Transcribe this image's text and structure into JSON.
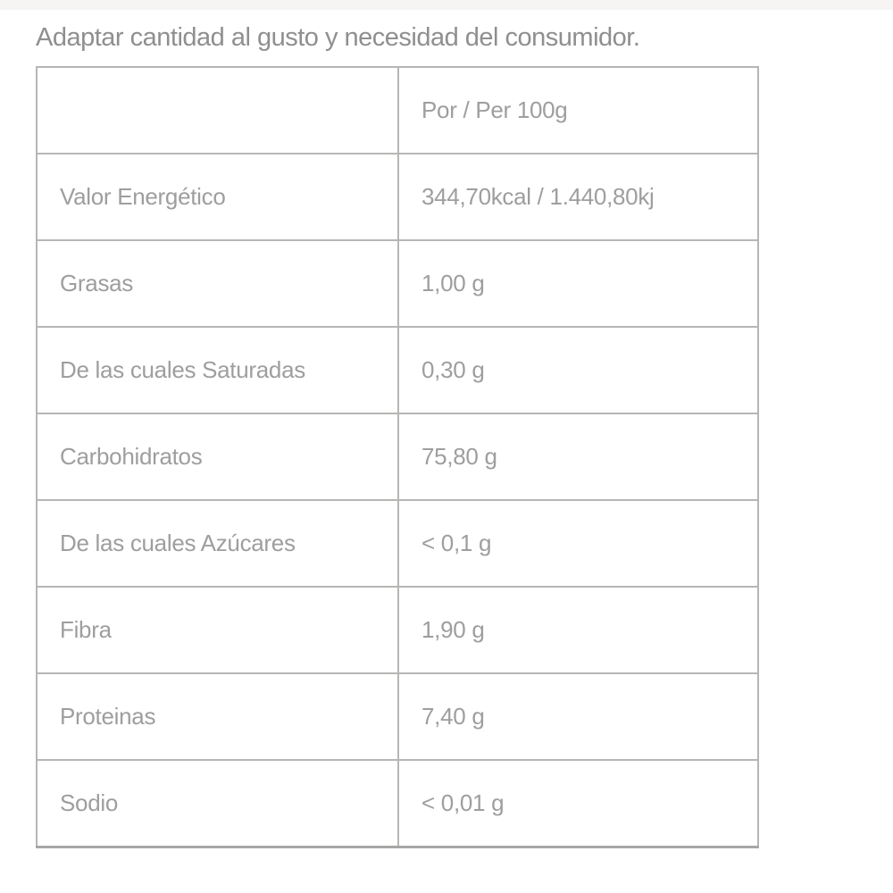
{
  "page": {
    "note": "Adaptar cantidad al gusto y necesidad del consumidor."
  },
  "colors": {
    "background": "#ffffff",
    "text": "#9e9e9e",
    "note_text": "#8f8f8f",
    "border": "#b7b6b4"
  },
  "table": {
    "header": {
      "label": "",
      "value": "Por / Per 100g"
    },
    "rows": [
      {
        "label": "Valor Energético",
        "value": "344,70kcal / 1.440,80kj"
      },
      {
        "label": "Grasas",
        "value": "1,00 g"
      },
      {
        "label": "De las cuales Saturadas",
        "value": "0,30 g"
      },
      {
        "label": "Carbohidratos",
        "value": "75,80 g"
      },
      {
        "label": "De las cuales Azúcares",
        "value": "< 0,1 g"
      },
      {
        "label": "Fibra",
        "value": "1,90 g"
      },
      {
        "label": "Proteinas",
        "value": "7,40 g"
      },
      {
        "label": "Sodio",
        "value": "< 0,01 g"
      }
    ]
  },
  "chart_data": {
    "type": "table",
    "title": "Adaptar cantidad al gusto y necesidad del consumidor.",
    "columns": [
      "",
      "Por / Per 100g"
    ],
    "rows": [
      [
        "Valor Energético",
        "344,70kcal / 1.440,80kj"
      ],
      [
        "Grasas",
        "1,00 g"
      ],
      [
        "De las cuales Saturadas",
        "0,30 g"
      ],
      [
        "Carbohidratos",
        "75,80 g"
      ],
      [
        "De las cuales Azúcares",
        "< 0,1 g"
      ],
      [
        "Fibra",
        "1,90 g"
      ],
      [
        "Proteinas",
        "7,40 g"
      ],
      [
        "Sodio",
        "< 0,01 g"
      ]
    ]
  }
}
